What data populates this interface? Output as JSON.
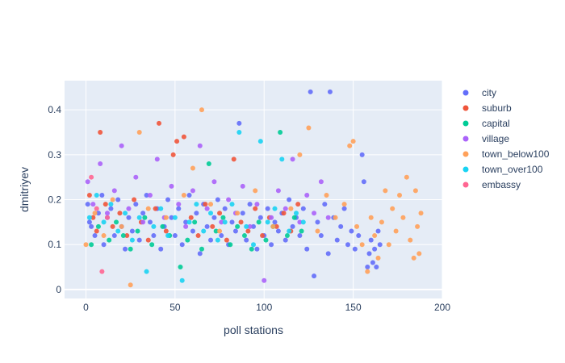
{
  "chart_data": {
    "type": "scatter",
    "xlabel": "poll stations",
    "ylabel": "dmitriyev",
    "xlim": [
      -12,
      200
    ],
    "ylim": [
      -0.02,
      0.465
    ],
    "x_ticks": [
      0,
      50,
      100,
      150,
      200
    ],
    "y_ticks": [
      0,
      0.1,
      0.2,
      0.3,
      0.4
    ],
    "grid": true,
    "legend_position": "top-right",
    "series": [
      {
        "name": "city",
        "color": "#636efa",
        "points": [
          [
            1,
            0.19
          ],
          [
            2,
            0.15
          ],
          [
            3,
            0.14
          ],
          [
            5,
            0.12
          ],
          [
            7,
            0.17
          ],
          [
            9,
            0.21
          ],
          [
            10,
            0.1
          ],
          [
            12,
            0.16
          ],
          [
            14,
            0.18
          ],
          [
            16,
            0.12
          ],
          [
            18,
            0.2
          ],
          [
            20,
            0.14
          ],
          [
            22,
            0.09
          ],
          [
            24,
            0.16
          ],
          [
            26,
            0.13
          ],
          [
            28,
            0.19
          ],
          [
            30,
            0.11
          ],
          [
            32,
            0.17
          ],
          [
            34,
            0.21
          ],
          [
            36,
            0.15
          ],
          [
            38,
            0.12
          ],
          [
            40,
            0.18
          ],
          [
            42,
            0.09
          ],
          [
            44,
            0.14
          ],
          [
            46,
            0.2
          ],
          [
            48,
            0.16
          ],
          [
            50,
            0.12
          ],
          [
            52,
            0.18
          ],
          [
            54,
            0.1
          ],
          [
            56,
            0.15
          ],
          [
            58,
            0.21
          ],
          [
            60,
            0.13
          ],
          [
            62,
            0.17
          ],
          [
            64,
            0.08
          ],
          [
            66,
            0.19
          ],
          [
            68,
            0.14
          ],
          [
            70,
            0.11
          ],
          [
            72,
            0.16
          ],
          [
            74,
            0.2
          ],
          [
            76,
            0.12
          ],
          [
            78,
            0.18
          ],
          [
            80,
            0.1
          ],
          [
            82,
            0.15
          ],
          [
            84,
            0.13
          ],
          [
            86,
            0.37
          ],
          [
            88,
            0.17
          ],
          [
            90,
            0.11
          ],
          [
            92,
            0.19
          ],
          [
            94,
            0.14
          ],
          [
            96,
            0.09
          ],
          [
            98,
            0.16
          ],
          [
            100,
            0.12
          ],
          [
            102,
            0.18
          ],
          [
            104,
            0.1
          ],
          [
            106,
            0.15
          ],
          [
            108,
            0.13
          ],
          [
            110,
            0.17
          ],
          [
            112,
            0.11
          ],
          [
            114,
            0.2
          ],
          [
            116,
            0.14
          ],
          [
            118,
            0.16
          ],
          [
            120,
            0.12
          ],
          [
            122,
            0.18
          ],
          [
            124,
            0.09
          ],
          [
            126,
            0.44
          ],
          [
            128,
            0.03
          ],
          [
            130,
            0.15
          ],
          [
            132,
            0.12
          ],
          [
            134,
            0.19
          ],
          [
            136,
            0.08
          ],
          [
            137,
            0.44
          ],
          [
            139,
            0.16
          ],
          [
            141,
            0.11
          ],
          [
            143,
            0.14
          ],
          [
            145,
            0.18
          ],
          [
            147,
            0.1
          ],
          [
            149,
            0.13
          ],
          [
            151,
            0.09
          ],
          [
            153,
            0.12
          ],
          [
            155,
            0.3
          ],
          [
            156,
            0.24
          ],
          [
            158,
            0.05
          ],
          [
            159,
            0.08
          ],
          [
            160,
            0.11
          ],
          [
            161,
            0.06
          ],
          [
            162,
            0.09
          ],
          [
            163,
            0.05
          ],
          [
            164,
            0.13
          ],
          [
            165,
            0.1
          ]
        ]
      },
      {
        "name": "suburb",
        "color": "#ef553b",
        "points": [
          [
            2,
            0.21
          ],
          [
            4,
            0.16
          ],
          [
            6,
            0.13
          ],
          [
            8,
            0.35
          ],
          [
            11,
            0.19
          ],
          [
            15,
            0.14
          ],
          [
            19,
            0.17
          ],
          [
            23,
            0.12
          ],
          [
            27,
            0.2
          ],
          [
            31,
            0.15
          ],
          [
            35,
            0.11
          ],
          [
            39,
            0.18
          ],
          [
            41,
            0.37
          ],
          [
            45,
            0.13
          ],
          [
            49,
            0.3
          ],
          [
            51,
            0.33
          ],
          [
            55,
            0.34
          ],
          [
            59,
            0.16
          ],
          [
            63,
            0.12
          ],
          [
            67,
            0.19
          ],
          [
            71,
            0.14
          ],
          [
            75,
            0.17
          ],
          [
            79,
            0.11
          ],
          [
            83,
            0.29
          ],
          [
            87,
            0.15
          ],
          [
            91,
            0.13
          ],
          [
            95,
            0.18
          ],
          [
            99,
            0.12
          ],
          [
            103,
            0.16
          ],
          [
            107,
            0.14
          ],
          [
            111,
            0.17
          ],
          [
            115,
            0.13
          ],
          [
            119,
            0.19
          ]
        ]
      },
      {
        "name": "capital",
        "color": "#00cc96",
        "points": [
          [
            3,
            0.1
          ],
          [
            7,
            0.14
          ],
          [
            13,
            0.11
          ],
          [
            17,
            0.15
          ],
          [
            21,
            0.12
          ],
          [
            25,
            0.09
          ],
          [
            29,
            0.13
          ],
          [
            33,
            0.16
          ],
          [
            37,
            0.1
          ],
          [
            43,
            0.14
          ],
          [
            47,
            0.12
          ],
          [
            53,
            0.05
          ],
          [
            57,
            0.11
          ],
          [
            61,
            0.15
          ],
          [
            65,
            0.09
          ],
          [
            69,
            0.28
          ],
          [
            73,
            0.13
          ],
          [
            77,
            0.16
          ],
          [
            81,
            0.1
          ],
          [
            85,
            0.14
          ],
          [
            89,
            0.12
          ],
          [
            93,
            0.09
          ],
          [
            97,
            0.15
          ],
          [
            101,
            0.11
          ],
          [
            105,
            0.14
          ],
          [
            109,
            0.35
          ],
          [
            113,
            0.12
          ],
          [
            117,
            0.16
          ],
          [
            121,
            0.13
          ]
        ]
      },
      {
        "name": "village",
        "color": "#ab63fa",
        "points": [
          [
            1,
            0.24
          ],
          [
            4,
            0.19
          ],
          [
            8,
            0.28
          ],
          [
            12,
            0.17
          ],
          [
            16,
            0.22
          ],
          [
            20,
            0.32
          ],
          [
            24,
            0.18
          ],
          [
            28,
            0.25
          ],
          [
            32,
            0.15
          ],
          [
            36,
            0.21
          ],
          [
            40,
            0.29
          ],
          [
            44,
            0.16
          ],
          [
            48,
            0.23
          ],
          [
            52,
            0.19
          ],
          [
            56,
            0.14
          ],
          [
            60,
            0.22
          ],
          [
            64,
            0.32
          ],
          [
            68,
            0.18
          ],
          [
            72,
            0.24
          ],
          [
            76,
            0.15
          ],
          [
            80,
            0.2
          ],
          [
            84,
            0.17
          ],
          [
            88,
            0.23
          ],
          [
            92,
            0.14
          ],
          [
            96,
            0.19
          ],
          [
            100,
            0.02
          ],
          [
            104,
            0.16
          ],
          [
            108,
            0.22
          ],
          [
            112,
            0.18
          ],
          [
            116,
            0.29
          ],
          [
            120,
            0.15
          ],
          [
            124,
            0.21
          ],
          [
            128,
            0.17
          ],
          [
            132,
            0.24
          ],
          [
            136,
            0.16
          ]
        ]
      },
      {
        "name": "town_below100",
        "color": "#ffa15a",
        "points": [
          [
            0,
            0.1
          ],
          [
            5,
            0.17
          ],
          [
            10,
            0.12
          ],
          [
            15,
            0.2
          ],
          [
            20,
            0.14
          ],
          [
            25,
            0.01
          ],
          [
            30,
            0.35
          ],
          [
            35,
            0.18
          ],
          [
            45,
            0.16
          ],
          [
            55,
            0.21
          ],
          [
            60,
            0.27
          ],
          [
            65,
            0.4
          ],
          [
            70,
            0.19
          ],
          [
            75,
            0.13
          ],
          [
            85,
            0.17
          ],
          [
            95,
            0.22
          ],
          [
            105,
            0.14
          ],
          [
            115,
            0.18
          ],
          [
            120,
            0.3
          ],
          [
            125,
            0.36
          ],
          [
            130,
            0.13
          ],
          [
            135,
            0.21
          ],
          [
            140,
            0.16
          ],
          [
            145,
            0.19
          ],
          [
            148,
            0.32
          ],
          [
            150,
            0.33
          ],
          [
            152,
            0.14
          ],
          [
            155,
            0.1
          ],
          [
            158,
            0.04
          ],
          [
            160,
            0.16
          ],
          [
            162,
            0.12
          ],
          [
            164,
            0.07
          ],
          [
            166,
            0.15
          ],
          [
            168,
            0.22
          ],
          [
            170,
            0.1
          ],
          [
            172,
            0.18
          ],
          [
            174,
            0.13
          ],
          [
            176,
            0.21
          ],
          [
            178,
            0.16
          ],
          [
            180,
            0.25
          ],
          [
            182,
            0.11
          ],
          [
            184,
            0.07
          ],
          [
            185,
            0.22
          ],
          [
            186,
            0.14
          ],
          [
            187,
            0.08
          ],
          [
            188,
            0.17
          ]
        ]
      },
      {
        "name": "town_over100",
        "color": "#19d3f3",
        "points": [
          [
            2,
            0.16
          ],
          [
            6,
            0.21
          ],
          [
            10,
            0.15
          ],
          [
            14,
            0.19
          ],
          [
            18,
            0.13
          ],
          [
            22,
            0.17
          ],
          [
            26,
            0.11
          ],
          [
            30,
            0.16
          ],
          [
            34,
            0.04
          ],
          [
            38,
            0.14
          ],
          [
            42,
            0.18
          ],
          [
            46,
            0.12
          ],
          [
            50,
            0.16
          ],
          [
            54,
            0.02
          ],
          [
            58,
            0.15
          ],
          [
            62,
            0.19
          ],
          [
            66,
            0.13
          ],
          [
            70,
            0.17
          ],
          [
            74,
            0.11
          ],
          [
            78,
            0.15
          ],
          [
            82,
            0.19
          ],
          [
            86,
            0.35
          ],
          [
            90,
            0.14
          ],
          [
            94,
            0.1
          ],
          [
            98,
            0.33
          ],
          [
            102,
            0.15
          ],
          [
            106,
            0.18
          ],
          [
            110,
            0.29
          ],
          [
            114,
            0.13
          ],
          [
            118,
            0.17
          ],
          [
            122,
            0.15
          ]
        ]
      },
      {
        "name": "embassy",
        "color": "#ff6692",
        "points": [
          [
            3,
            0.25
          ],
          [
            6,
            0.18
          ],
          [
            9,
            0.04
          ],
          [
            12,
            0.16
          ]
        ]
      }
    ]
  }
}
